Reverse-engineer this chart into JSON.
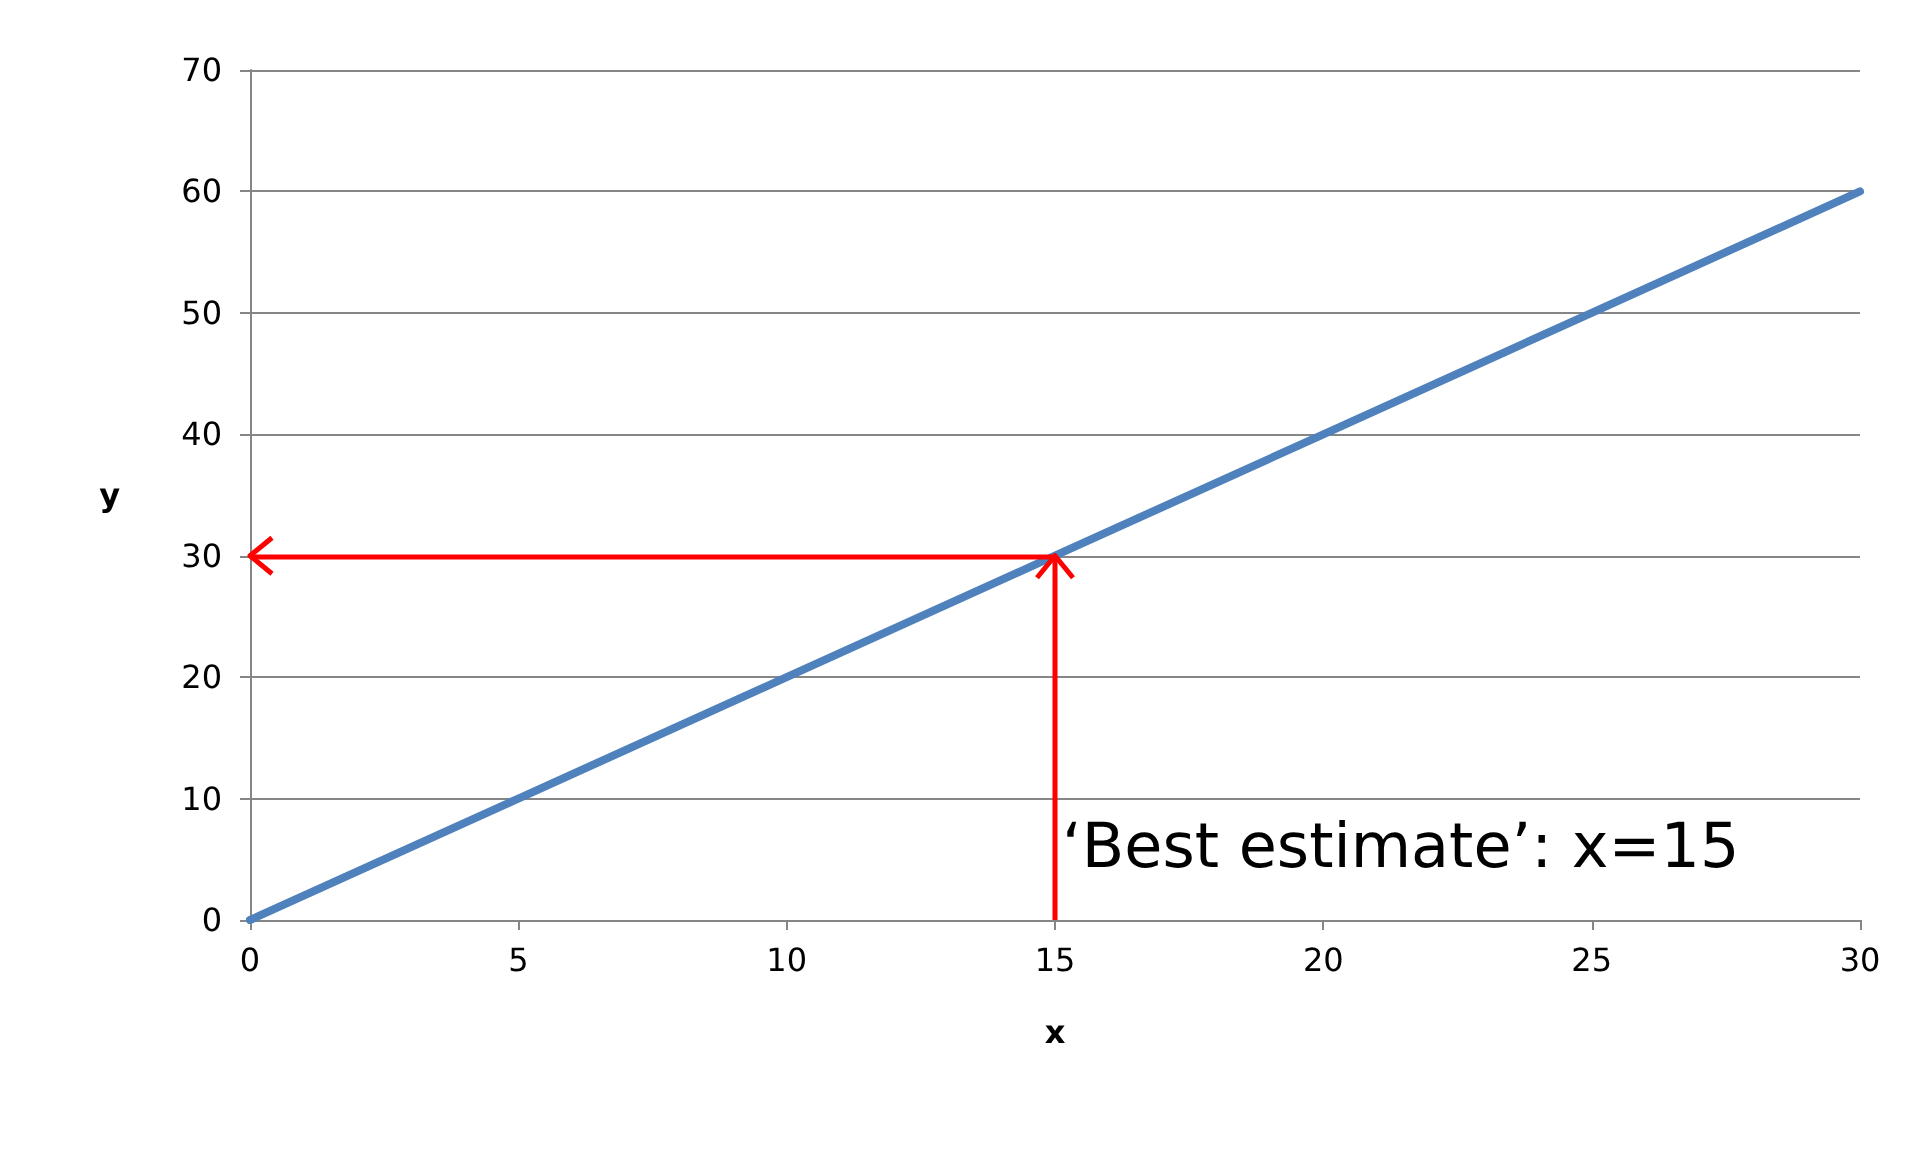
{
  "chart_data": {
    "type": "line",
    "xlabel": "x",
    "ylabel": "y",
    "x": [
      0,
      5,
      10,
      15,
      20,
      25,
      30
    ],
    "series": [
      {
        "color": "#4f81bd",
        "values": [
          0,
          10,
          20,
          30,
          40,
          50,
          60
        ]
      }
    ],
    "xlim": [
      0,
      30
    ],
    "xticks": [
      0,
      5,
      10,
      15,
      20,
      25,
      30
    ],
    "ylim": [
      0,
      70
    ],
    "yticks": [
      0,
      10,
      20,
      30,
      40,
      50,
      60,
      70
    ],
    "grid": "y",
    "marker": "none",
    "line_style": "solid",
    "ref_lines": [
      {
        "axis": "x",
        "value": 15,
        "color": "#ff0000"
      },
      {
        "axis": "y",
        "value": 30,
        "color": "#ff0000"
      }
    ],
    "annotations": [
      "‘Best estimate’: x=15"
    ]
  }
}
